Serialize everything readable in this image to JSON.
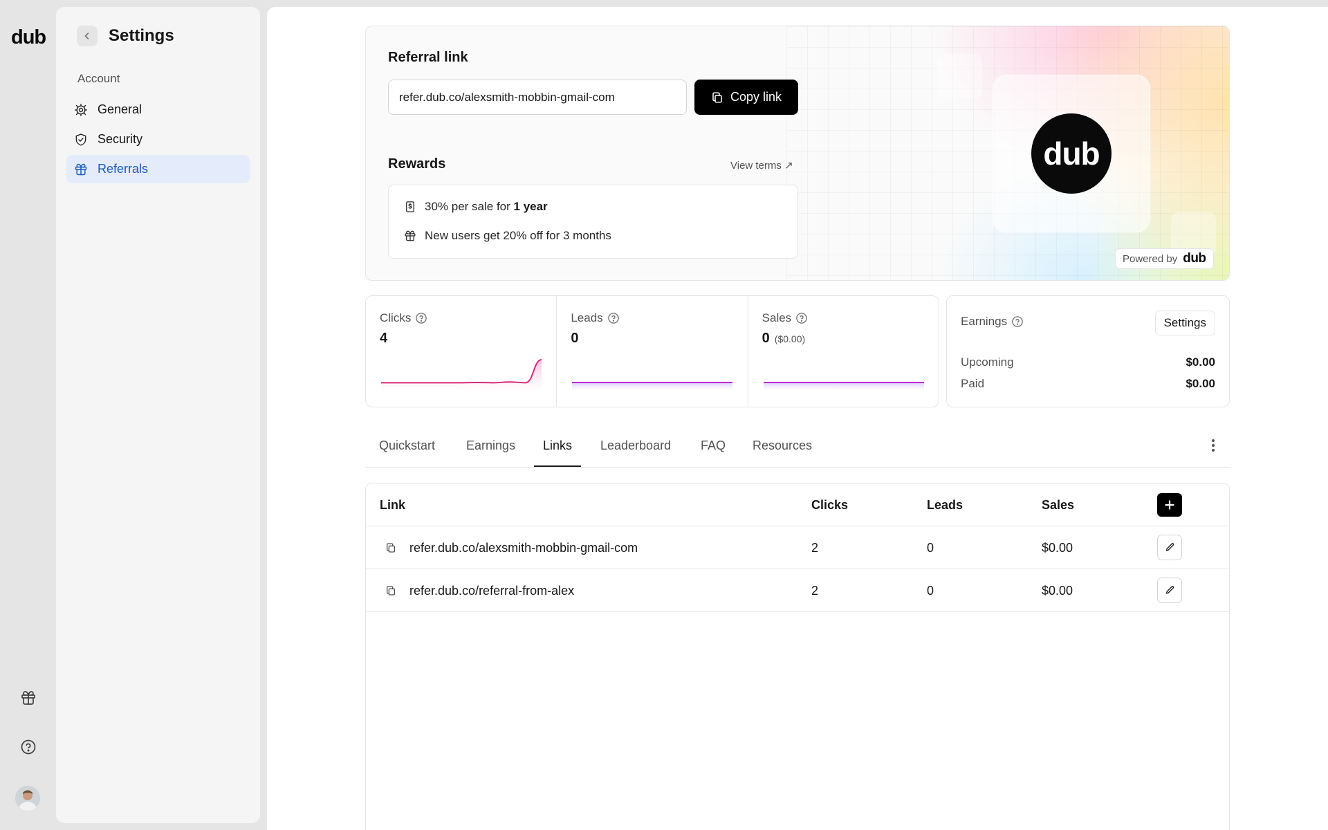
{
  "rail": {
    "logo": "dub",
    "icons": [
      "gift-icon",
      "help-icon"
    ]
  },
  "settings": {
    "title": "Settings",
    "section": "Account",
    "nav": [
      {
        "label": "General",
        "icon": "gear-icon"
      },
      {
        "label": "Security",
        "icon": "shield-icon"
      },
      {
        "label": "Referrals",
        "icon": "gift-icon",
        "active": true
      }
    ]
  },
  "referral": {
    "heading": "Referral link",
    "link": "refer.dub.co/alexsmith-mobbin-gmail-com",
    "copy_label": "Copy link",
    "rewards_heading": "Rewards",
    "view_terms": "View terms ↗",
    "rewards": [
      {
        "icon": "receipt-dollar-icon",
        "text": "30% per sale for ",
        "bold": "1 year"
      },
      {
        "icon": "gift-icon",
        "text": "New users get 20% off for 3 months",
        "bold": ""
      }
    ],
    "brand_logo": "dub",
    "powered_by": "Powered by",
    "powered_logo": "dub"
  },
  "stats": [
    {
      "label": "Clicks",
      "value": "4",
      "sub": "",
      "trend": [
        0.02,
        0.02,
        0.02,
        0.02,
        0.02,
        0.02,
        0.03,
        0.02,
        0.05,
        0.02,
        1.0
      ]
    },
    {
      "label": "Leads",
      "value": "0",
      "sub": "",
      "trend": [
        0,
        0,
        0,
        0,
        0,
        0,
        0,
        0,
        0,
        0,
        0
      ]
    },
    {
      "label": "Sales",
      "value": "0",
      "sub": "($0.00)",
      "trend": [
        0,
        0,
        0,
        0,
        0,
        0,
        0,
        0,
        0,
        0,
        0
      ]
    }
  ],
  "earnings": {
    "label": "Earnings",
    "settings_label": "Settings",
    "rows": [
      {
        "label": "Upcoming",
        "value": "$0.00"
      },
      {
        "label": "Paid",
        "value": "$0.00"
      }
    ]
  },
  "tabs": [
    "Quickstart",
    "Earnings",
    "Links",
    "Leaderboard",
    "FAQ",
    "Resources"
  ],
  "active_tab": "Links",
  "table": {
    "headers": {
      "link": "Link",
      "clicks": "Clicks",
      "leads": "Leads",
      "sales": "Sales"
    },
    "rows": [
      {
        "link": "refer.dub.co/alexsmith-mobbin-gmail-com",
        "clicks": "2",
        "leads": "0",
        "sales": "$0.00"
      },
      {
        "link": "refer.dub.co/referral-from-alex",
        "clicks": "2",
        "leads": "0",
        "sales": "$0.00"
      }
    ]
  },
  "colors": {
    "accent": "#1d5ab9",
    "active_bg": "#e4ecfb",
    "spark": "#db2777",
    "spark_flat": "#c026d3"
  }
}
